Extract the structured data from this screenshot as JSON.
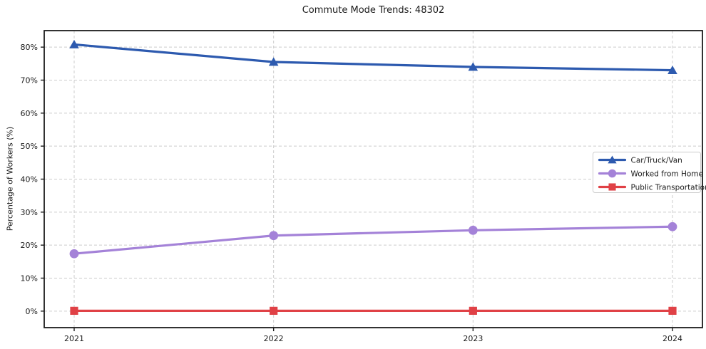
{
  "chart_data": {
    "type": "line",
    "title": "Commute Mode Trends: 48302",
    "xlabel": "",
    "ylabel": "Percentage of Workers (%)",
    "categories": [
      "2021",
      "2022",
      "2023",
      "2024"
    ],
    "series": [
      {
        "name": "Car/Truck/Van",
        "values": [
          80.8,
          75.5,
          74.0,
          73.0
        ],
        "color": "#2d5aaf",
        "marker": "triangle"
      },
      {
        "name": "Worked from Home",
        "values": [
          17.4,
          22.9,
          24.5,
          25.6
        ],
        "color": "#a482d8",
        "marker": "circle"
      },
      {
        "name": "Public Transportation",
        "values": [
          0.1,
          0.1,
          0.1,
          0.1
        ],
        "color": "#e04146",
        "marker": "square"
      }
    ],
    "ylim": [
      -5,
      85
    ],
    "yticks": [
      {
        "value": 0,
        "label": "0%"
      },
      {
        "value": 10,
        "label": "10%"
      },
      {
        "value": 20,
        "label": "20%"
      },
      {
        "value": 30,
        "label": "30%"
      },
      {
        "value": 40,
        "label": "40%"
      },
      {
        "value": 50,
        "label": "50%"
      },
      {
        "value": 60,
        "label": "60%"
      },
      {
        "value": 70,
        "label": "70%"
      },
      {
        "value": 80,
        "label": "80%"
      }
    ],
    "grid": true,
    "grid_style": "dashed",
    "grid_color": "#cccccc",
    "spine_color": "#1c1c1c",
    "text_color": "#1a1a1a",
    "legend_position": "center right"
  }
}
